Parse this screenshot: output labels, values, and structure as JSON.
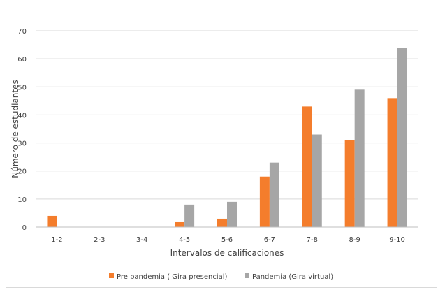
{
  "chart_data": {
    "type": "bar",
    "title": "",
    "xlabel": "Intervalos de calificaciones",
    "ylabel": "Número de estudiantes",
    "ylim": [
      0,
      70
    ],
    "yticks": [
      0,
      10,
      20,
      30,
      40,
      50,
      60,
      70
    ],
    "grid": true,
    "legend_position": "bottom",
    "categories": [
      "1-2",
      "2-3",
      "3-4",
      "4-5",
      "5-6",
      "6-7",
      "7-8",
      "8-9",
      "9-10"
    ],
    "series": [
      {
        "name": "Pre pandemia ( Gira presencial)",
        "color": "#f47d2c",
        "values": [
          4,
          0,
          0,
          2,
          3,
          18,
          43,
          31,
          46
        ]
      },
      {
        "name": "Pandemia (Gira virtual)",
        "color": "#a6a6a6",
        "values": [
          0,
          0,
          0,
          8,
          9,
          23,
          33,
          49,
          64
        ]
      }
    ]
  }
}
